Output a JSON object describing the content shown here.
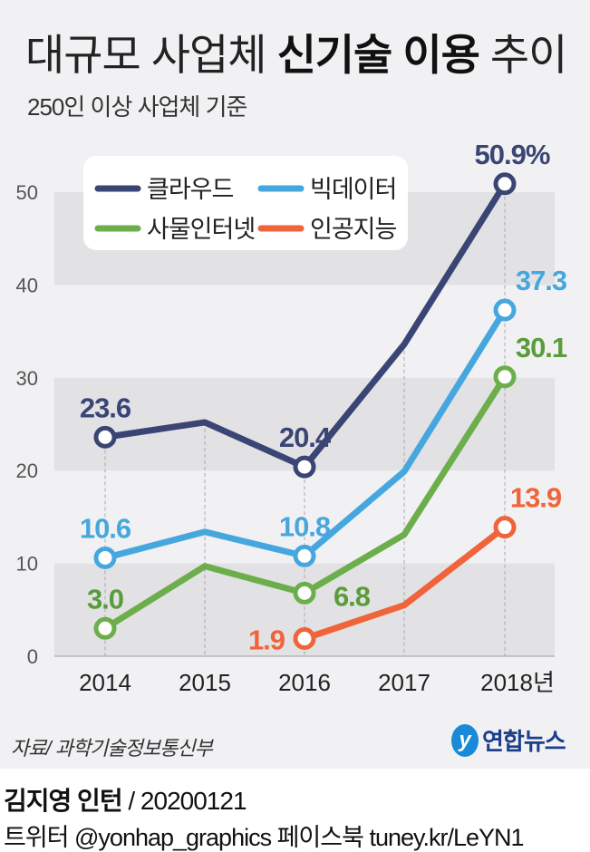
{
  "header": {
    "title_pre": "대규모 사업체 ",
    "title_bold": "신기술 이용",
    "title_post": " 추이",
    "subtitle": "250인 이상 사업체 기준"
  },
  "chart_data": {
    "type": "line",
    "title": "대규모 사업체 신기술 이용 추이",
    "subtitle": "250인 이상 사업체 기준",
    "categories": [
      "2014",
      "2015",
      "2016",
      "2017",
      "2018년"
    ],
    "yticks": [
      "0",
      "10",
      "20",
      "30",
      "40",
      "50"
    ],
    "ylim": [
      0,
      50
    ],
    "unit": "%",
    "grid": "alternating bands",
    "legend_position": "top-left",
    "series": [
      {
        "name": "클라우드",
        "color": "#3a4574",
        "values": [
          23.6,
          25.2,
          20.4,
          33.6,
          50.9
        ],
        "labels": [
          "23.6",
          null,
          "20.4",
          null,
          "50.9%"
        ],
        "label_color": "#3a4574"
      },
      {
        "name": "빅데이터",
        "color": "#46a7df",
        "values": [
          10.6,
          13.4,
          10.8,
          19.9,
          37.3
        ],
        "labels": [
          "10.6",
          null,
          "10.8",
          null,
          "37.3"
        ],
        "label_color": "#46a7df"
      },
      {
        "name": "사물인터넷",
        "color": "#6dae4c",
        "values": [
          3.0,
          9.7,
          6.8,
          13.1,
          30.1
        ],
        "labels": [
          "3.0",
          null,
          "6.8",
          null,
          "30.1"
        ],
        "label_color": "#5a9c3a"
      },
      {
        "name": "인공지능",
        "color": "#f0643b",
        "values": [
          null,
          null,
          1.9,
          5.5,
          13.9
        ],
        "labels": [
          null,
          null,
          "1.9",
          null,
          "13.9"
        ],
        "label_color": "#f0643b"
      }
    ]
  },
  "footer": {
    "source": "자료/ 과학기술정보통신부",
    "logo": "연합뉴스",
    "credit_name": "김지영 인턴",
    "credit_date": " / 20200121",
    "social": "트위터 @yonhap_graphics  페이스북 tuney.kr/LeYN1"
  }
}
